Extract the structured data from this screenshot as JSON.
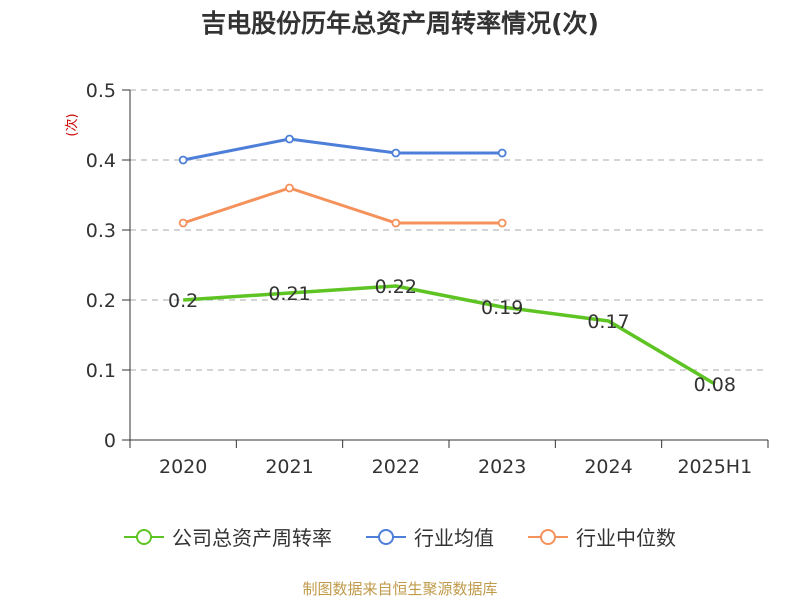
{
  "title": "吉电股份历年总资产周转率情况(次)",
  "source": "制图数据来自恒生聚源数据库",
  "colors": {
    "company": "#5ec424",
    "industry_avg": "#4d7fd8",
    "industry_median": "#f5915a",
    "grid": "#bbbbbb",
    "axis": "#333333"
  },
  "chart_data": {
    "type": "line",
    "title": "吉电股份历年总资产周转率情况(次)",
    "ylabel": "(次)",
    "xlabel": "",
    "categories": [
      "2020",
      "2021",
      "2022",
      "2023",
      "2024",
      "2025H1"
    ],
    "ylim": [
      0,
      0.5
    ],
    "yticks": [
      0,
      0.1,
      0.2,
      0.3,
      0.4,
      0.5
    ],
    "ytick_labels": [
      "0",
      "0.1",
      "0.2",
      "0.3",
      "0.4",
      "0.5"
    ],
    "grid": true,
    "legend_position": "bottom",
    "series": [
      {
        "name": "公司总资产周转率",
        "color": "#5ec424",
        "values": [
          0.2,
          0.21,
          0.22,
          0.19,
          0.17,
          0.08
        ],
        "labels": [
          "0.2",
          "0.21",
          "0.22",
          "0.19",
          "0.17",
          "0.08"
        ],
        "markers": false
      },
      {
        "name": "行业均值",
        "color": "#4d7fd8",
        "values": [
          0.4,
          0.43,
          0.41,
          0.41,
          null,
          null
        ],
        "markers": true
      },
      {
        "name": "行业中位数",
        "color": "#f5915a",
        "values": [
          0.31,
          0.36,
          0.31,
          0.31,
          null,
          null
        ],
        "markers": true
      }
    ]
  }
}
